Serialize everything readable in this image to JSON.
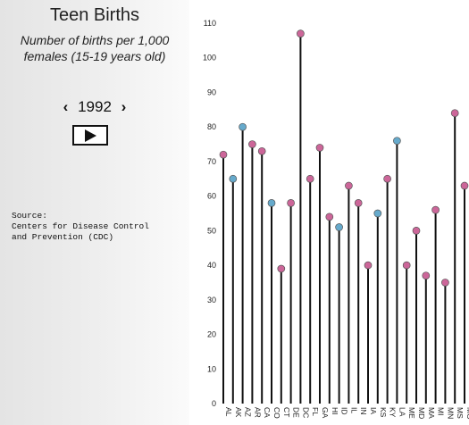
{
  "sidebar": {
    "title": "Teen Births",
    "subtitle_line1": "Number of births per 1,000",
    "subtitle_line2": "females (15-19 years old)",
    "year": "1992",
    "prev_label": "‹",
    "next_label": "›",
    "play_icon": "play-icon",
    "source_line1": "Source:",
    "source_line2": "Centers for Disease Control",
    "source_line3": "and Prevention (CDC)"
  },
  "colors": {
    "pink": "#cc6699",
    "blue": "#66aacc",
    "stem": "#111111"
  },
  "chart_data": {
    "type": "lollipop",
    "ylim": [
      0,
      110
    ],
    "yticks": [
      0,
      10,
      20,
      30,
      40,
      50,
      60,
      70,
      80,
      90,
      100,
      110
    ],
    "grid": false,
    "categories": [
      "AL",
      "AK",
      "AZ",
      "AR",
      "CA",
      "CO",
      "CT",
      "DE",
      "DC",
      "FL",
      "GA",
      "HI",
      "ID",
      "IL",
      "IN",
      "IA",
      "KS",
      "KY",
      "LA",
      "ME",
      "MD",
      "MA",
      "MI",
      "MN",
      "MS",
      "MO"
    ],
    "values": [
      72,
      65,
      80,
      75,
      73,
      58,
      39,
      58,
      107,
      65,
      74,
      54,
      51,
      63,
      58,
      40,
      55,
      65,
      76,
      40,
      50,
      37,
      56,
      35,
      84,
      63
    ],
    "dot_color": [
      "pink",
      "blue",
      "blue",
      "pink",
      "pink",
      "blue",
      "pink",
      "pink",
      "pink",
      "pink",
      "pink",
      "pink",
      "blue",
      "pink",
      "pink",
      "pink",
      "blue",
      "pink",
      "blue",
      "pink",
      "pink",
      "pink",
      "pink",
      "pink",
      "pink",
      "pink"
    ]
  }
}
